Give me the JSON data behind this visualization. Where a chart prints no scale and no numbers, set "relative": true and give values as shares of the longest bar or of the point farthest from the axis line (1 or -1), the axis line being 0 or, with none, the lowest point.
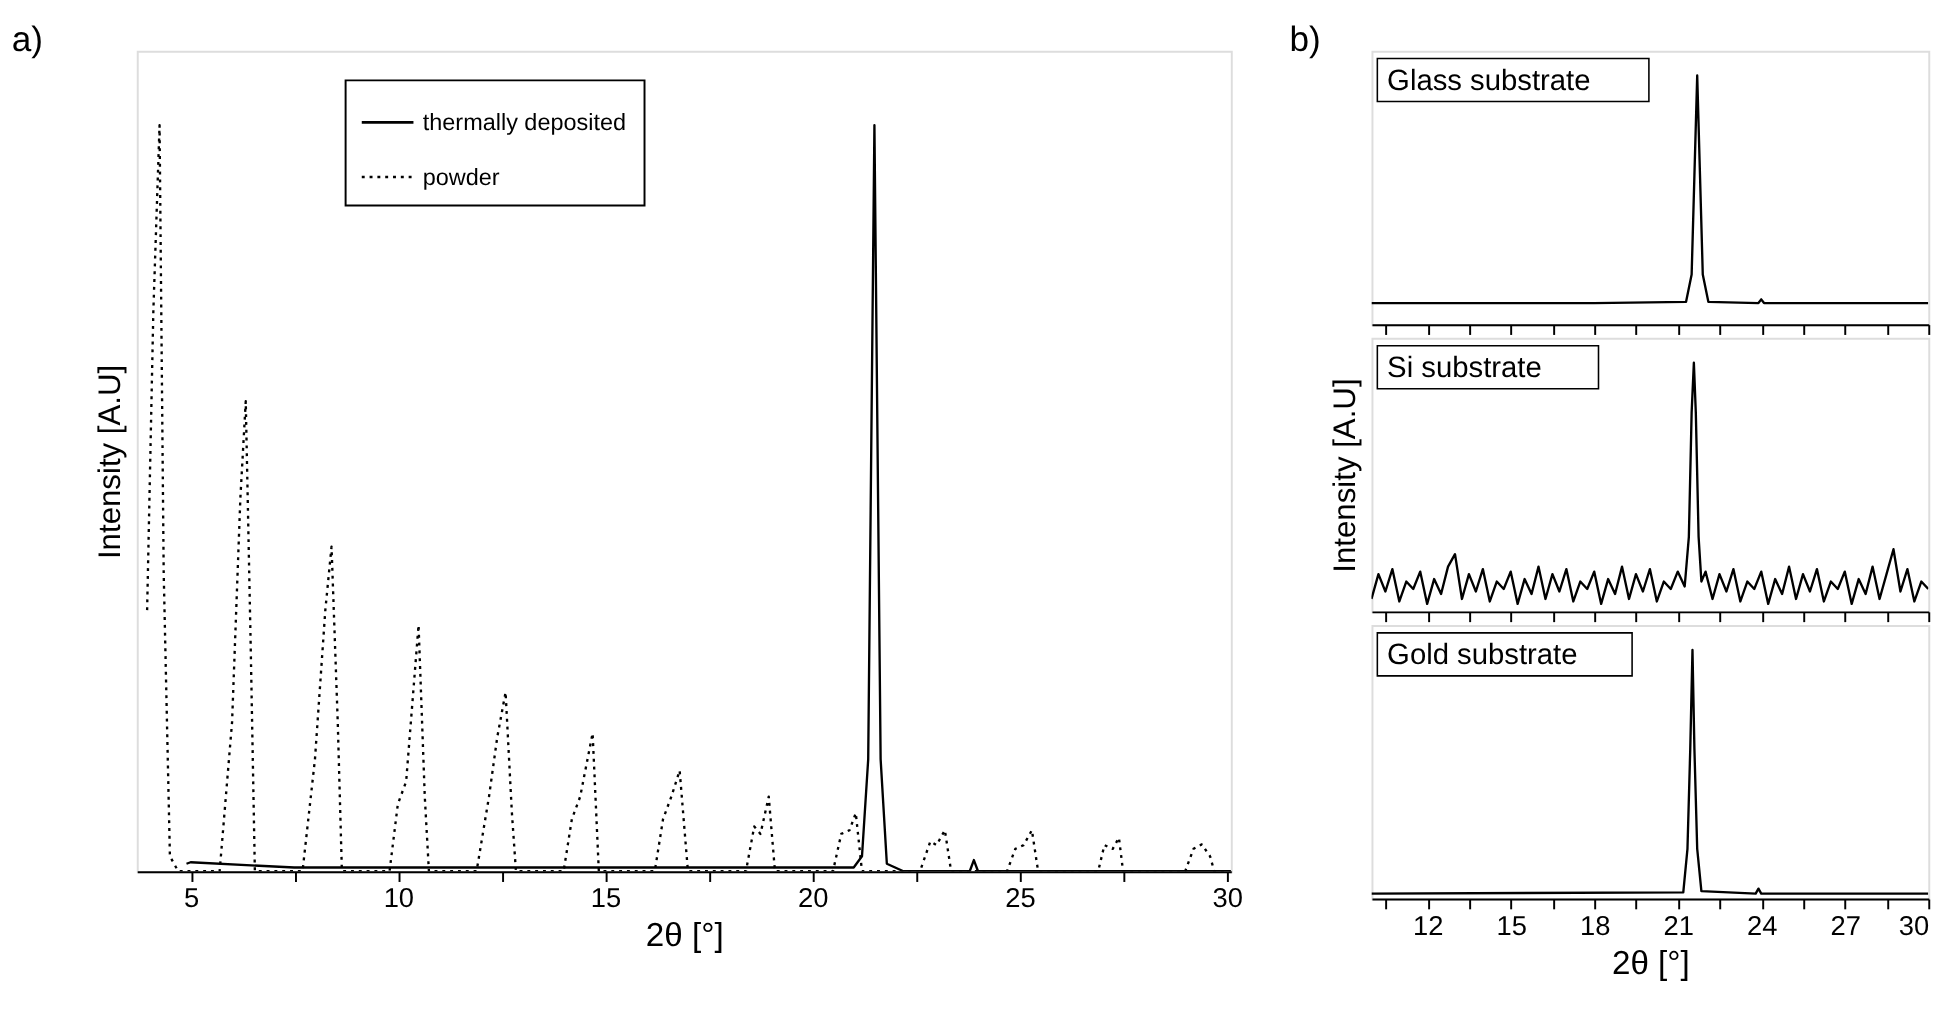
{
  "chart_data": [
    {
      "type": "line",
      "title": "a)",
      "xlabel": "2θ [°]",
      "ylabel": "Intensity [A.U]",
      "relative": true,
      "legend": "top",
      "xlim": [
        3.7,
        30.1
      ],
      "xticks": [
        5,
        {
          "value": 7.5,
          "label": null
        },
        10,
        {
          "value": 12.5,
          "label": null
        },
        15,
        {
          "value": 17.5,
          "label": null
        },
        20,
        {
          "value": 22.5,
          "label": null
        },
        25,
        {
          "value": 27.5,
          "label": null
        },
        30
      ],
      "series": [
        {
          "name": "thermally deposited",
          "color": "#000000",
          "line_style": "solid",
          "x": [
            4.9,
            5.0,
            7.5,
            21.0,
            21.2,
            21.35,
            21.5,
            21.65,
            21.8,
            22.2,
            23.8,
            23.9,
            24.0,
            30.1
          ],
          "values": [
            0.01,
            0.012,
            0.005,
            0.005,
            0.02,
            0.15,
            1.0,
            0.15,
            0.01,
            0,
            0,
            0.015,
            0,
            0
          ]
        },
        {
          "name": "powder",
          "color": "#000000",
          "line_style": "dotted",
          "x": [
            3.95,
            4.1,
            4.25,
            4.35,
            4.5,
            4.7,
            5.7,
            6.0,
            6.2,
            6.33,
            6.45,
            6.55,
            7.7,
            8.0,
            8.25,
            8.4,
            8.55,
            8.65,
            9.8,
            10.0,
            10.2,
            10.5,
            10.65,
            10.75,
            11.9,
            12.2,
            12.4,
            12.6,
            12.75,
            12.85,
            14.0,
            14.2,
            14.4,
            14.7,
            14.85,
            16.2,
            16.4,
            16.6,
            16.8,
            17.0,
            18.4,
            18.6,
            18.75,
            18.95,
            19.1,
            20.5,
            20.7,
            20.9,
            21.05,
            21.2,
            22.6,
            22.85,
            23.0,
            23.2,
            23.35,
            24.7,
            24.9,
            25.1,
            25.3,
            25.45,
            26.9,
            27.05,
            27.25,
            27.4,
            27.5,
            29.0,
            29.2,
            29.4,
            29.6,
            29.7,
            30.1
          ],
          "values": [
            0.35,
            0.75,
            1.0,
            0.4,
            0.02,
            0,
            0,
            0.2,
            0.5,
            0.63,
            0.3,
            0,
            0,
            0.15,
            0.35,
            0.435,
            0.2,
            0,
            0,
            0.09,
            0.12,
            0.33,
            0.1,
            0,
            0,
            0.1,
            0.18,
            0.24,
            0.08,
            0,
            0,
            0.07,
            0.1,
            0.185,
            0,
            0,
            0.07,
            0.1,
            0.135,
            0,
            0,
            0.06,
            0.05,
            0.1,
            0,
            0,
            0.05,
            0.055,
            0.078,
            0,
            0,
            0.04,
            0.035,
            0.055,
            0,
            0,
            0.03,
            0.035,
            0.055,
            0,
            0,
            0.035,
            0.03,
            0.045,
            0,
            0,
            0.03,
            0.036,
            0.02,
            0,
            0
          ]
        }
      ]
    },
    {
      "type": "line",
      "title": "b)",
      "relative": true,
      "tick_labels": false,
      "xlim": [
        10,
        30
      ],
      "xticks": [
        {
          "value": 10.5,
          "label": null
        },
        12,
        {
          "value": 13.5,
          "label": null
        },
        15,
        {
          "value": 16.5,
          "label": null
        },
        18,
        {
          "value": 19.5,
          "label": null
        },
        21,
        {
          "value": 22.5,
          "label": null
        },
        24,
        {
          "value": 25.5,
          "label": null
        },
        27,
        {
          "value": 28.5,
          "label": null
        },
        30
      ],
      "series": [
        {
          "name": "Glass substrate",
          "color": "#000000",
          "line_style": "solid",
          "x": [
            10,
            14,
            18,
            21.3,
            21.5,
            21.6,
            21.7,
            21.8,
            21.9,
            22.1,
            23.9,
            24.0,
            24.1,
            25,
            30
          ],
          "values": [
            0.085,
            0.085,
            0.085,
            0.09,
            0.2,
            0.6,
            1,
            0.6,
            0.2,
            0.09,
            0.085,
            0.1,
            0.085,
            0.085,
            0.085
          ]
        }
      ]
    },
    {
      "type": "line",
      "ylabel": "Intensity [A.U]",
      "relative": true,
      "tick_labels": false,
      "xlim": [
        10,
        30
      ],
      "xticks": [
        {
          "value": 10.5,
          "label": null
        },
        12,
        {
          "value": 13.5,
          "label": null
        },
        15,
        {
          "value": 16.5,
          "label": null
        },
        18,
        {
          "value": 19.5,
          "label": null
        },
        21,
        {
          "value": 22.5,
          "label": null
        },
        24,
        {
          "value": 25.5,
          "label": null
        },
        27,
        {
          "value": 28.5,
          "label": null
        },
        30
      ],
      "series": [
        {
          "name": "Si substrate",
          "color": "#000000",
          "line_style": "solid",
          "x": [
            10.0,
            10.25,
            10.5,
            10.75,
            11.0,
            11.25,
            11.5,
            11.75,
            12.0,
            12.25,
            12.5,
            12.75,
            13.0,
            13.25,
            13.5,
            13.75,
            14.0,
            14.25,
            14.5,
            14.75,
            15.0,
            15.25,
            15.5,
            15.75,
            16.0,
            16.25,
            16.5,
            16.75,
            17.0,
            17.25,
            17.5,
            17.75,
            18.0,
            18.25,
            18.5,
            18.75,
            19.0,
            19.25,
            19.5,
            19.75,
            20.0,
            20.25,
            20.5,
            20.75,
            21.0,
            21.25,
            21.4,
            21.5,
            21.58,
            21.65,
            21.75,
            21.85,
            22.0,
            22.25,
            22.5,
            22.75,
            23.0,
            23.25,
            23.5,
            23.75,
            24.0,
            24.25,
            24.5,
            24.75,
            25.0,
            25.25,
            25.5,
            25.75,
            26.0,
            26.25,
            26.5,
            26.75,
            27.0,
            27.25,
            27.5,
            27.75,
            28.0,
            28.25,
            28.5,
            28.75,
            29.0,
            29.25,
            29.5,
            29.75,
            30.0
          ],
          "values": [
            0.05,
            0.15,
            0.08,
            0.17,
            0.04,
            0.12,
            0.09,
            0.16,
            0.03,
            0.13,
            0.07,
            0.18,
            0.23,
            0.05,
            0.15,
            0.08,
            0.17,
            0.04,
            0.12,
            0.09,
            0.16,
            0.03,
            0.13,
            0.07,
            0.18,
            0.05,
            0.15,
            0.08,
            0.17,
            0.04,
            0.12,
            0.09,
            0.16,
            0.03,
            0.13,
            0.07,
            0.18,
            0.05,
            0.15,
            0.08,
            0.17,
            0.04,
            0.12,
            0.09,
            0.16,
            0.1,
            0.3,
            0.8,
            1.0,
            0.8,
            0.3,
            0.12,
            0.16,
            0.05,
            0.15,
            0.08,
            0.17,
            0.04,
            0.12,
            0.09,
            0.16,
            0.03,
            0.13,
            0.07,
            0.18,
            0.05,
            0.15,
            0.08,
            0.17,
            0.04,
            0.12,
            0.09,
            0.16,
            0.03,
            0.13,
            0.07,
            0.18,
            0.05,
            0.15,
            0.25,
            0.08,
            0.17,
            0.04,
            0.12,
            0.09
          ]
        }
      ]
    },
    {
      "type": "line",
      "xlabel": "2θ [°]",
      "relative": true,
      "xlim": [
        10,
        30
      ],
      "xticks": [
        {
          "value": 10.5,
          "label": null
        },
        12,
        {
          "value": 13.5,
          "label": null
        },
        15,
        {
          "value": 16.5,
          "label": null
        },
        18,
        {
          "value": 19.5,
          "label": null
        },
        21,
        {
          "value": 22.5,
          "label": null
        },
        24,
        {
          "value": 25.5,
          "label": null
        },
        27,
        {
          "value": 28.5,
          "label": null
        },
        30
      ],
      "series": [
        {
          "name": "Gold substrate",
          "color": "#000000",
          "line_style": "solid",
          "x": [
            10,
            21.2,
            21.35,
            21.45,
            21.53,
            21.6,
            21.7,
            21.85,
            23.8,
            23.9,
            24.0,
            30
          ],
          "values": [
            0.02,
            0.025,
            0.2,
            0.6,
            1,
            0.6,
            0.2,
            0.03,
            0.02,
            0.04,
            0.02,
            0.02
          ]
        }
      ]
    }
  ]
}
